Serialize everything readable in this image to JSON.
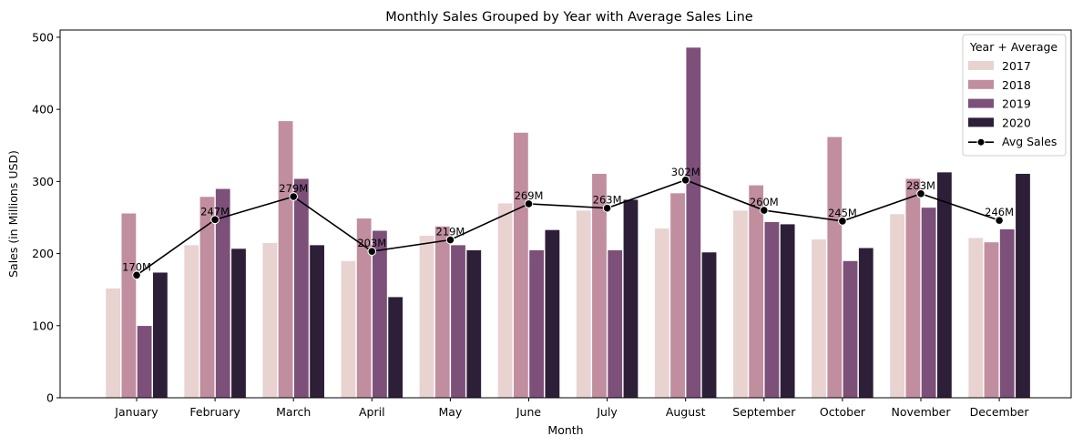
{
  "chart_data": {
    "type": "bar",
    "title": "Monthly Sales Grouped by Year with Average Sales Line",
    "xlabel": "Month",
    "ylabel": "Sales (in Millions USD)",
    "ylim": [
      0,
      510
    ],
    "yticks": [
      0,
      100,
      200,
      300,
      400,
      500
    ],
    "categories": [
      "January",
      "February",
      "March",
      "April",
      "May",
      "June",
      "July",
      "August",
      "September",
      "October",
      "November",
      "December"
    ],
    "series": [
      {
        "name": "2017",
        "color": "#e8d3d1",
        "values": [
          152,
          212,
          215,
          190,
          225,
          270,
          260,
          235,
          260,
          220,
          255,
          222
        ]
      },
      {
        "name": "2018",
        "color": "#c08e9f",
        "values": [
          256,
          279,
          384,
          249,
          238,
          368,
          311,
          284,
          295,
          362,
          304,
          216
        ]
      },
      {
        "name": "2019",
        "color": "#7c5079",
        "values": [
          100,
          290,
          304,
          232,
          212,
          205,
          205,
          486,
          244,
          190,
          264,
          234
        ]
      },
      {
        "name": "2020",
        "color": "#2e1f38",
        "values": [
          174,
          207,
          212,
          140,
          205,
          233,
          275,
          202,
          241,
          208,
          313,
          311
        ]
      }
    ],
    "average_line": {
      "name": "Avg Sales",
      "color": "#000000",
      "values": [
        170,
        247,
        279,
        203,
        219,
        269,
        263,
        302,
        260,
        245,
        283,
        246
      ],
      "labels": [
        "170M",
        "247M",
        "279M",
        "203M",
        "219M",
        "269M",
        "263M",
        "302M",
        "260M",
        "245M",
        "283M",
        "246M"
      ]
    },
    "legend": {
      "title": "Year + Average",
      "position": "top-right"
    }
  }
}
